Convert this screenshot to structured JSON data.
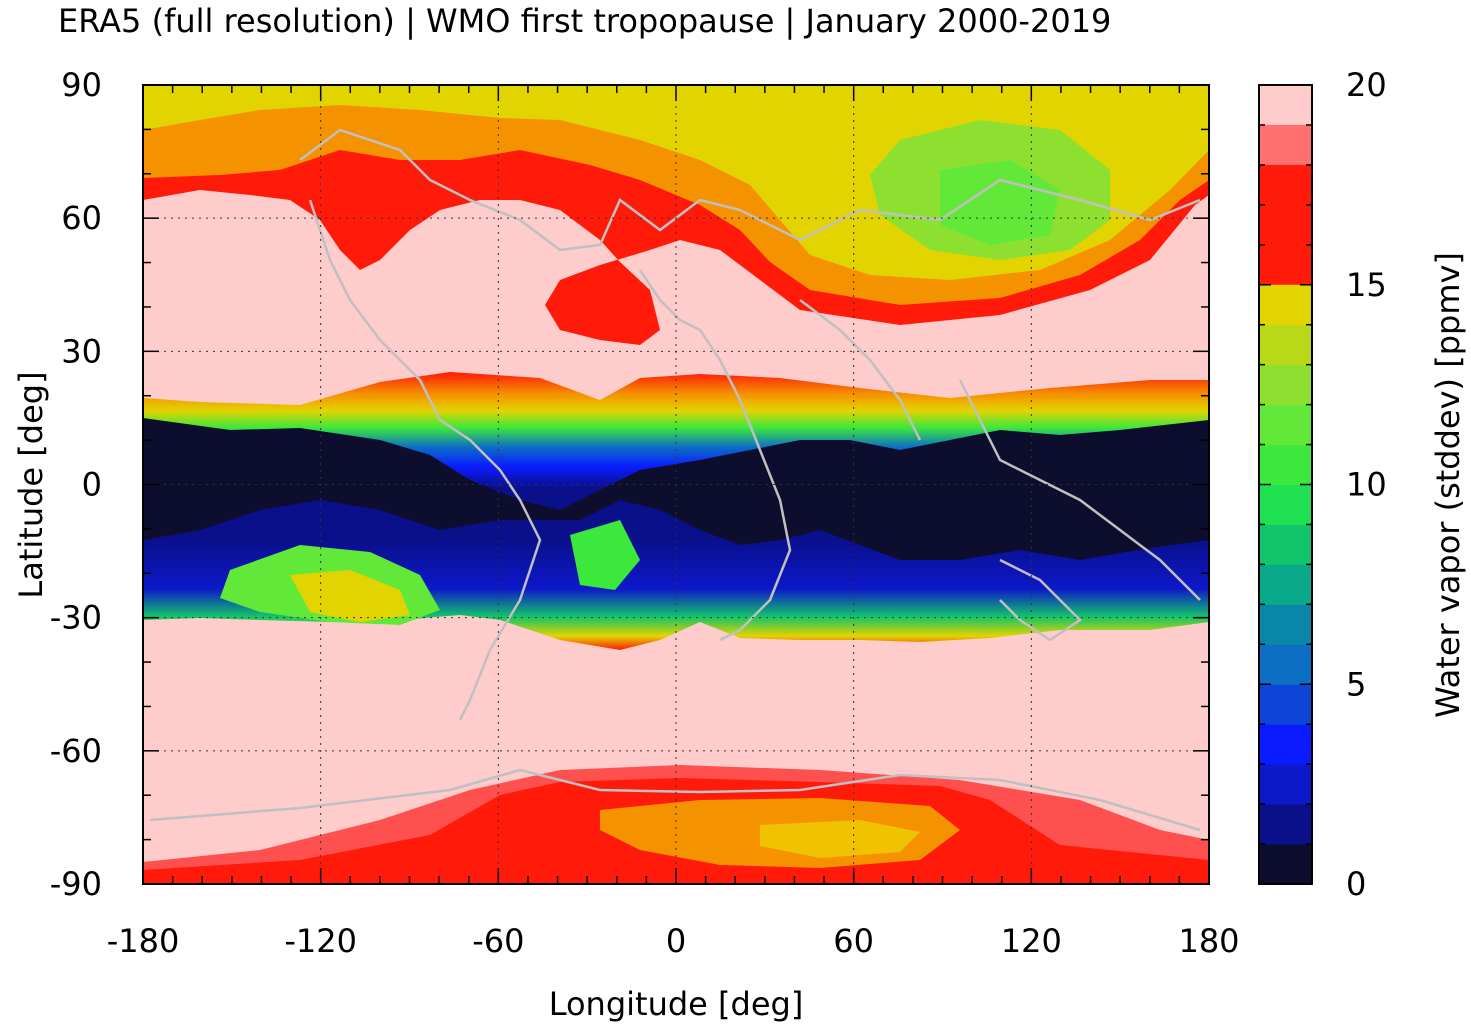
{
  "title": "ERA5 (full resolution) | WMO first tropopause | January 2000-2019",
  "chart_data": {
    "type": "heatmap",
    "title": "ERA5 (full resolution) | WMO first tropopause | January 2000-2019",
    "xlabel": "Longitude [deg]",
    "ylabel": "Latitude [deg]",
    "xlim": [
      -180,
      180
    ],
    "ylim": [
      -90,
      90
    ],
    "xticks": [
      -180,
      -120,
      -60,
      0,
      60,
      120,
      180
    ],
    "yticks": [
      90,
      60,
      30,
      0,
      -30,
      -60,
      -90
    ],
    "grid": true,
    "colorbar": {
      "label": "Water vapor (stddev) [ppmv]",
      "range": [
        0,
        20
      ],
      "ticks": [
        0,
        5,
        10,
        15,
        20
      ],
      "levels": 20,
      "colors": [
        "#0d0d2e",
        "#0a0f8a",
        "#0d18c9",
        "#0a1cff",
        "#0d46d6",
        "#0d6fc4",
        "#0a87a8",
        "#0aa98a",
        "#12c46a",
        "#1fe050",
        "#3ce83c",
        "#62e838",
        "#8ee030",
        "#b8d818",
        "#e2d400",
        "#f0c200",
        "#f3ac00",
        "#f59200",
        "#ff7000",
        "#ff1a0a"
      ],
      "overflow_color": "#ffcccc"
    },
    "bands": [
      {
        "lat": [
          60,
          90
        ],
        "description_values_ppmv": [
          10,
          16
        ]
      },
      {
        "lat": [
          25,
          60
        ],
        "value_ppmv": 20
      },
      {
        "lat": [
          -30,
          25
        ],
        "description_values_ppmv": [
          0,
          4
        ]
      },
      {
        "lat": [
          -65,
          -30
        ],
        "value_ppmv": 20
      },
      {
        "lat": [
          -90,
          -65
        ],
        "description_values_ppmv": [
          13,
          18
        ]
      }
    ]
  }
}
